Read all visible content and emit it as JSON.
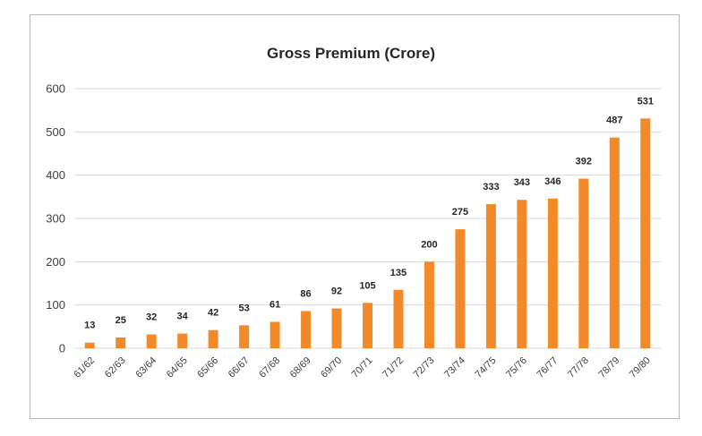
{
  "chart_data": {
    "type": "bar",
    "title": "Gross Premium (Crore)",
    "xlabel": "",
    "ylabel": "",
    "categories": [
      "61/62",
      "62/63",
      "63/64",
      "64/65",
      "65/66",
      "66/67",
      "67/68",
      "68/69",
      "69/70",
      "70/71",
      "71/72",
      "72/73",
      "73/74",
      "74/75",
      "75/76",
      "76/77",
      "77/78",
      "78/79",
      "79/80"
    ],
    "values": [
      13,
      25,
      32,
      34,
      42,
      53,
      61,
      86,
      92,
      105,
      135,
      200,
      275,
      333,
      343,
      346,
      392,
      487,
      531
    ],
    "ylim": [
      0,
      600
    ],
    "yticks": [
      0,
      100,
      200,
      300,
      400,
      500,
      600
    ],
    "grid": true,
    "legend": "none",
    "bar_color": "#f28a2a",
    "grid_color": "#d9d9d9"
  }
}
